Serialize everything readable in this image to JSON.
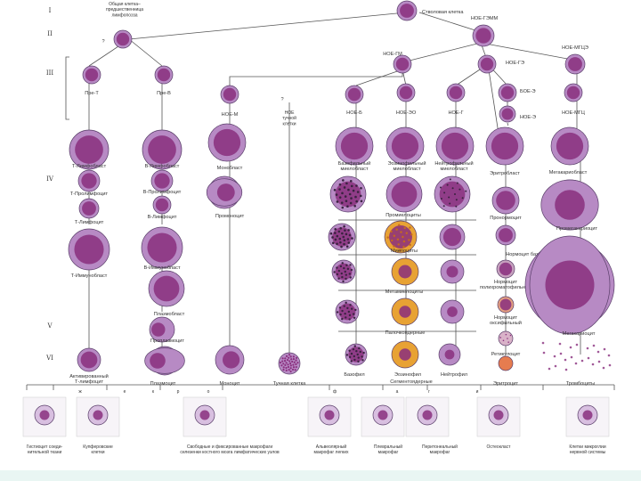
{
  "stages": [
    "I",
    "II",
    "III",
    "IV",
    "V",
    "VI"
  ],
  "nodes": {
    "stem": "Стволовая клетка",
    "common": "Общая клетка–\nпредшественница\nлимфопоэза",
    "common_q": "?",
    "gemm": "НОЕ-ГЭММ",
    "gm": "НОЕ-ГМ",
    "ge": "НОЕ-ГЭ",
    "mge": "НОЕ-МГЦЭ",
    "pre_t": "Пре-Т",
    "pre_b": "Пре-В",
    "noe_m": "НОЕ-М",
    "mast_q": "?",
    "mast_precursor": "НОЕ\nтучной\nклетки",
    "noe_b": "НОЕ-Б",
    "noe_eo": "НОЕ-ЭО",
    "noe_g": "НОЕ-Г",
    "boe_e": "БОЕ-Э",
    "noe_e": "НОЕ-Э",
    "noe_mgc": "НОЕ-МГЦ"
  },
  "cells": {
    "t_lymphoblast": "Т-Лимфобласт",
    "t_prolymphocyte": "Т-Пролимфоцит",
    "t_lymphocyte": "Т-Лимфоцит",
    "t_immunoblast": "Т-Иммунобласт",
    "t_activated": "Активированный\nТ-лимфоцит",
    "b_lymphoblast": "В-Лимфобласт",
    "b_prolymphocyte": "В-Пролимфоцит",
    "b_lymphocyte": "В-Лимфоцит",
    "b_immunoblast": "В-Иммунобласт",
    "plasmablast": "Плазмобласт",
    "proplasmocyte": "Проплазмоцит",
    "plasmocyte": "Плазмоцит",
    "monoblast": "Монобласт",
    "promonocyte": "Промоноцит",
    "monocyte": "Моноцит",
    "mast_cell": "Тучная клетка",
    "baso_myeloblast": "Базофильный\nмиелобласт",
    "eosino_myeloblast": "Эозинофильный\nмиелобласт",
    "neutro_myeloblast": "Нейтрофильный\nмиелобласт",
    "promyelocytes": "Промиелоциты",
    "myelocytes": "Миелоциты",
    "metamyelocytes": "Метамиелоциты",
    "band": "Палочкоядерные",
    "basophil": "Базофил",
    "eosinophil": "Эозинофил",
    "neutrophil": "Нейтрофил",
    "segmented": "Сегментоядерные",
    "erythroblast": "Эритробласт",
    "pronormocyte": "Пронормоцит",
    "normo_baso": "Нормоцит базофильный",
    "normo_poly": "Нормоцит\nполихроматофильный",
    "normo_oxy": "Нормоцит\nоксифильный",
    "reticulocyte": "Ретикулоцит",
    "erythrocyte": "Эритроцит",
    "megakaryoblast": "Мегакариобласт",
    "promegakaryocyte": "Промегакариоцит",
    "megakaryocyte": "Мегакариоцит",
    "platelets": "Тромбоциты"
  },
  "letters": [
    "ж",
    "е",
    "к",
    "р",
    "о",
    "ф",
    "а",
    "г",
    "и"
  ],
  "macrophages": [
    "Гистиоцит соеди-\nнительной ткани",
    "Купферовские\nклетки",
    "Свободные и фиксированные макрофаги\nселезенки     костного мозга     лимфатических узлов",
    "Альвеолярный\nмакрофаг легких",
    "Плевральный\nмакрофаг",
    "Перитонеальный\nмакрофаг",
    "Остеокласт",
    "Клетки микроглии\nнервной системы"
  ],
  "colors": {
    "cytoplasm": "#b78ac4",
    "nucleus": "#8a2f7e",
    "rim": "#5a3f6a",
    "eosin_granule": "#e8a234",
    "baso_granule": "#3a2240",
    "erythro": "#e67c4f",
    "line": "#555555"
  }
}
